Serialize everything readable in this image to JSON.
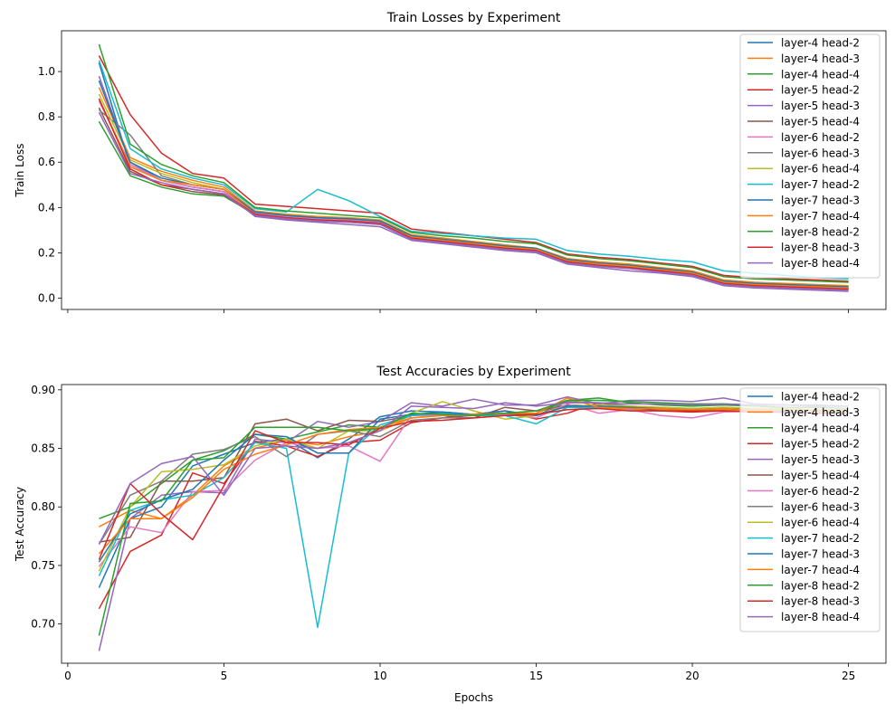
{
  "chart_data": [
    {
      "type": "line",
      "title": "Train Losses by Experiment",
      "xlabel": "",
      "ylabel": "Train Loss",
      "xlim": [
        -0.2,
        26.2
      ],
      "ylim": [
        -0.05,
        1.18
      ],
      "xticks": [
        0,
        5,
        10,
        15,
        20,
        25
      ],
      "show_xticklabels": false,
      "yticks": [
        0.0,
        0.2,
        0.4,
        0.6,
        0.8,
        1.0
      ],
      "ytick_labels": [
        "0.0",
        "0.2",
        "0.4",
        "0.6",
        "0.8",
        "1.0"
      ],
      "legend_position": "upper right",
      "x": [
        1,
        2,
        3,
        4,
        5,
        6,
        7,
        8,
        9,
        10,
        11,
        12,
        13,
        14,
        15,
        16,
        17,
        18,
        19,
        20,
        21,
        22,
        23,
        24,
        25
      ],
      "series": [
        {
          "name": "layer-4 head-2",
          "color": "#1f77b4",
          "values": [
            1.04,
            0.58,
            0.52,
            0.49,
            0.47,
            0.37,
            0.355,
            0.35,
            0.34,
            0.33,
            0.27,
            0.255,
            0.24,
            0.225,
            0.21,
            0.165,
            0.15,
            0.14,
            0.125,
            0.11,
            0.07,
            0.06,
            0.055,
            0.05,
            0.045
          ]
        },
        {
          "name": "layer-4 head-3",
          "color": "#ff7f0e",
          "values": [
            0.93,
            0.62,
            0.56,
            0.52,
            0.49,
            0.385,
            0.37,
            0.36,
            0.355,
            0.345,
            0.28,
            0.265,
            0.25,
            0.235,
            0.22,
            0.175,
            0.16,
            0.15,
            0.135,
            0.12,
            0.08,
            0.07,
            0.065,
            0.06,
            0.055
          ]
        },
        {
          "name": "layer-4 head-4",
          "color": "#2ca02c",
          "values": [
            0.78,
            0.54,
            0.49,
            0.46,
            0.45,
            0.37,
            0.355,
            0.345,
            0.34,
            0.33,
            0.265,
            0.25,
            0.235,
            0.22,
            0.205,
            0.16,
            0.145,
            0.135,
            0.12,
            0.105,
            0.065,
            0.055,
            0.05,
            0.045,
            0.04
          ]
        },
        {
          "name": "layer-5 head-2",
          "color": "#d62728",
          "values": [
            1.07,
            0.81,
            0.64,
            0.55,
            0.53,
            0.415,
            0.405,
            0.395,
            0.385,
            0.375,
            0.305,
            0.29,
            0.275,
            0.26,
            0.245,
            0.195,
            0.18,
            0.17,
            0.155,
            0.14,
            0.1,
            0.09,
            0.085,
            0.08,
            0.075
          ]
        },
        {
          "name": "layer-5 head-3",
          "color": "#9467bd",
          "values": [
            0.98,
            0.6,
            0.52,
            0.49,
            0.47,
            0.36,
            0.345,
            0.335,
            0.325,
            0.315,
            0.255,
            0.24,
            0.225,
            0.21,
            0.2,
            0.15,
            0.135,
            0.12,
            0.11,
            0.095,
            0.055,
            0.045,
            0.04,
            0.035,
            0.03
          ]
        },
        {
          "name": "layer-5 head-4",
          "color": "#8c564b",
          "values": [
            0.84,
            0.56,
            0.5,
            0.47,
            0.455,
            0.365,
            0.35,
            0.34,
            0.335,
            0.325,
            0.265,
            0.25,
            0.235,
            0.22,
            0.21,
            0.16,
            0.145,
            0.135,
            0.12,
            0.105,
            0.065,
            0.055,
            0.05,
            0.045,
            0.04
          ]
        },
        {
          "name": "layer-6 head-2",
          "color": "#e377c2",
          "values": [
            0.87,
            0.59,
            0.52,
            0.49,
            0.47,
            0.375,
            0.36,
            0.35,
            0.345,
            0.335,
            0.27,
            0.255,
            0.24,
            0.225,
            0.215,
            0.165,
            0.15,
            0.14,
            0.125,
            0.11,
            0.07,
            0.06,
            0.055,
            0.05,
            0.045
          ]
        },
        {
          "name": "layer-6 head-3",
          "color": "#7f7f7f",
          "values": [
            0.83,
            0.72,
            0.54,
            0.5,
            0.48,
            0.38,
            0.365,
            0.355,
            0.35,
            0.34,
            0.275,
            0.26,
            0.245,
            0.23,
            0.22,
            0.17,
            0.155,
            0.145,
            0.13,
            0.115,
            0.075,
            0.065,
            0.06,
            0.055,
            0.05
          ]
        },
        {
          "name": "layer-6 head-4",
          "color": "#bcbd22",
          "values": [
            0.9,
            0.61,
            0.55,
            0.51,
            0.48,
            0.38,
            0.365,
            0.355,
            0.35,
            0.34,
            0.275,
            0.26,
            0.245,
            0.23,
            0.22,
            0.17,
            0.155,
            0.145,
            0.13,
            0.115,
            0.075,
            0.065,
            0.06,
            0.055,
            0.05
          ]
        },
        {
          "name": "layer-7 head-2",
          "color": "#17becf",
          "values": [
            1.05,
            0.66,
            0.57,
            0.53,
            0.5,
            0.395,
            0.38,
            0.48,
            0.43,
            0.36,
            0.295,
            0.285,
            0.275,
            0.265,
            0.26,
            0.21,
            0.195,
            0.185,
            0.17,
            0.16,
            0.12,
            0.11,
            0.1,
            0.09,
            0.085
          ]
        },
        {
          "name": "layer-7 head-3",
          "color": "#1f77b4",
          "values": [
            0.96,
            0.6,
            0.53,
            0.5,
            0.48,
            0.38,
            0.365,
            0.355,
            0.35,
            0.34,
            0.275,
            0.26,
            0.245,
            0.23,
            0.22,
            0.17,
            0.155,
            0.145,
            0.13,
            0.115,
            0.075,
            0.065,
            0.06,
            0.055,
            0.05
          ]
        },
        {
          "name": "layer-7 head-4",
          "color": "#ff7f0e",
          "values": [
            0.88,
            0.58,
            0.52,
            0.5,
            0.48,
            0.37,
            0.355,
            0.345,
            0.34,
            0.33,
            0.27,
            0.255,
            0.24,
            0.225,
            0.215,
            0.165,
            0.15,
            0.14,
            0.125,
            0.11,
            0.07,
            0.06,
            0.055,
            0.05,
            0.045
          ]
        },
        {
          "name": "layer-8 head-2",
          "color": "#2ca02c",
          "values": [
            1.12,
            0.68,
            0.59,
            0.54,
            0.51,
            0.4,
            0.385,
            0.375,
            0.365,
            0.355,
            0.29,
            0.275,
            0.265,
            0.25,
            0.24,
            0.19,
            0.175,
            0.165,
            0.15,
            0.135,
            0.095,
            0.085,
            0.08,
            0.075,
            0.07
          ]
        },
        {
          "name": "layer-8 head-3",
          "color": "#d62728",
          "values": [
            0.88,
            0.57,
            0.5,
            0.48,
            0.46,
            0.37,
            0.355,
            0.345,
            0.34,
            0.33,
            0.265,
            0.25,
            0.235,
            0.22,
            0.21,
            0.16,
            0.145,
            0.135,
            0.12,
            0.105,
            0.065,
            0.055,
            0.05,
            0.045,
            0.04
          ]
        },
        {
          "name": "layer-8 head-4",
          "color": "#9467bd",
          "values": [
            0.82,
            0.55,
            0.51,
            0.48,
            0.46,
            0.365,
            0.35,
            0.34,
            0.335,
            0.325,
            0.26,
            0.245,
            0.23,
            0.215,
            0.205,
            0.155,
            0.14,
            0.13,
            0.115,
            0.1,
            0.06,
            0.05,
            0.045,
            0.04,
            0.035
          ]
        }
      ]
    },
    {
      "type": "line",
      "title": "Test Accuracies by Experiment",
      "xlabel": "Epochs",
      "ylabel": "Test Accuracy",
      "xlim": [
        -0.2,
        26.2
      ],
      "ylim": [
        0.6665,
        0.9045
      ],
      "xticks": [
        0,
        5,
        10,
        15,
        20,
        25
      ],
      "show_xticklabels": true,
      "yticks": [
        0.7,
        0.75,
        0.8,
        0.85,
        0.9
      ],
      "ytick_labels": [
        "0.70",
        "0.75",
        "0.80",
        "0.85",
        "0.90"
      ],
      "legend_position": "upper right",
      "x": [
        1,
        2,
        3,
        4,
        5,
        6,
        7,
        8,
        9,
        10,
        11,
        12,
        13,
        14,
        15,
        16,
        17,
        18,
        19,
        20,
        21,
        22,
        23,
        24,
        25
      ],
      "series": [
        {
          "name": "layer-4 head-2",
          "color": "#1f77b4",
          "values": [
            0.731,
            0.79,
            0.8,
            0.835,
            0.845,
            0.855,
            0.858,
            0.842,
            0.858,
            0.877,
            0.882,
            0.881,
            0.879,
            0.882,
            0.878,
            0.886,
            0.885,
            0.884,
            0.884,
            0.882,
            0.884,
            0.883,
            0.882,
            0.882,
            0.881
          ]
        },
        {
          "name": "layer-4 head-3",
          "color": "#ff7f0e",
          "values": [
            0.783,
            0.797,
            0.79,
            0.81,
            0.835,
            0.85,
            0.857,
            0.853,
            0.86,
            0.865,
            0.876,
            0.878,
            0.879,
            0.88,
            0.882,
            0.885,
            0.884,
            0.883,
            0.883,
            0.882,
            0.883,
            0.882,
            0.881,
            0.881,
            0.88
          ]
        },
        {
          "name": "layer-4 head-4",
          "color": "#2ca02c",
          "values": [
            0.79,
            0.8,
            0.82,
            0.84,
            0.848,
            0.862,
            0.858,
            0.864,
            0.87,
            0.868,
            0.878,
            0.88,
            0.878,
            0.879,
            0.88,
            0.891,
            0.893,
            0.889,
            0.887,
            0.886,
            0.887,
            0.886,
            0.885,
            0.885,
            0.884
          ]
        },
        {
          "name": "layer-5 head-2",
          "color": "#d62728",
          "values": [
            0.713,
            0.762,
            0.776,
            0.829,
            0.82,
            0.856,
            0.852,
            0.843,
            0.855,
            0.857,
            0.872,
            0.876,
            0.879,
            0.882,
            0.875,
            0.88,
            0.889,
            0.885,
            0.882,
            0.882,
            0.882,
            0.881,
            0.881,
            0.88,
            0.88
          ]
        },
        {
          "name": "layer-5 head-3",
          "color": "#9467bd",
          "values": [
            0.677,
            0.79,
            0.81,
            0.813,
            0.812,
            0.858,
            0.855,
            0.873,
            0.868,
            0.873,
            0.889,
            0.886,
            0.892,
            0.887,
            0.887,
            0.894,
            0.888,
            0.891,
            0.891,
            0.89,
            0.893,
            0.888,
            0.887,
            0.887,
            0.886
          ]
        },
        {
          "name": "layer-5 head-4",
          "color": "#8c564b",
          "values": [
            0.77,
            0.774,
            0.822,
            0.822,
            0.825,
            0.871,
            0.875,
            0.865,
            0.874,
            0.873,
            0.878,
            0.878,
            0.876,
            0.885,
            0.882,
            0.887,
            0.886,
            0.885,
            0.884,
            0.884,
            0.884,
            0.883,
            0.883,
            0.882,
            0.882
          ]
        },
        {
          "name": "layer-6 head-2",
          "color": "#e377c2",
          "values": [
            0.749,
            0.783,
            0.778,
            0.813,
            0.814,
            0.84,
            0.855,
            0.85,
            0.852,
            0.839,
            0.878,
            0.878,
            0.878,
            0.879,
            0.876,
            0.888,
            0.88,
            0.883,
            0.878,
            0.876,
            0.881,
            0.882,
            0.882,
            0.881,
            0.88
          ]
        },
        {
          "name": "layer-6 head-3",
          "color": "#7f7f7f",
          "values": [
            0.768,
            0.81,
            0.822,
            0.845,
            0.849,
            0.86,
            0.843,
            0.862,
            0.865,
            0.86,
            0.874,
            0.876,
            0.876,
            0.878,
            0.878,
            0.89,
            0.889,
            0.886,
            0.885,
            0.884,
            0.885,
            0.884,
            0.884,
            0.883,
            0.883
          ]
        },
        {
          "name": "layer-6 head-4",
          "color": "#bcbd22",
          "values": [
            0.745,
            0.8,
            0.83,
            0.832,
            0.836,
            0.852,
            0.858,
            0.85,
            0.865,
            0.865,
            0.88,
            0.89,
            0.882,
            0.875,
            0.878,
            0.886,
            0.887,
            0.886,
            0.885,
            0.884,
            0.885,
            0.884,
            0.884,
            0.883,
            0.883
          ]
        },
        {
          "name": "layer-7 head-2",
          "color": "#17becf",
          "values": [
            0.741,
            0.797,
            0.806,
            0.81,
            0.825,
            0.855,
            0.85,
            0.697,
            0.846,
            0.87,
            0.878,
            0.88,
            0.878,
            0.878,
            0.871,
            0.885,
            0.885,
            0.884,
            0.884,
            0.883,
            0.884,
            0.883,
            0.882,
            0.882,
            0.881
          ]
        },
        {
          "name": "layer-7 head-3",
          "color": "#1f77b4",
          "values": [
            0.753,
            0.794,
            0.806,
            0.815,
            0.84,
            0.862,
            0.86,
            0.846,
            0.846,
            0.875,
            0.879,
            0.881,
            0.879,
            0.882,
            0.878,
            0.886,
            0.886,
            0.885,
            0.884,
            0.883,
            0.884,
            0.883,
            0.883,
            0.882,
            0.882
          ]
        },
        {
          "name": "layer-7 head-4",
          "color": "#ff7f0e",
          "values": [
            0.76,
            0.79,
            0.79,
            0.808,
            0.832,
            0.845,
            0.853,
            0.862,
            0.866,
            0.868,
            0.876,
            0.878,
            0.879,
            0.88,
            0.88,
            0.893,
            0.885,
            0.884,
            0.884,
            0.883,
            0.884,
            0.883,
            0.883,
            0.882,
            0.882
          ]
        },
        {
          "name": "layer-8 head-2",
          "color": "#2ca02c",
          "values": [
            0.69,
            0.803,
            0.805,
            0.84,
            0.842,
            0.868,
            0.868,
            0.868,
            0.865,
            0.867,
            0.88,
            0.879,
            0.878,
            0.88,
            0.882,
            0.891,
            0.891,
            0.89,
            0.889,
            0.888,
            0.888,
            0.887,
            0.887,
            0.886,
            0.886
          ]
        },
        {
          "name": "layer-8 head-3",
          "color": "#d62728",
          "values": [
            0.755,
            0.82,
            0.794,
            0.772,
            0.818,
            0.865,
            0.855,
            0.855,
            0.853,
            0.867,
            0.873,
            0.874,
            0.876,
            0.878,
            0.879,
            0.883,
            0.884,
            0.882,
            0.882,
            0.881,
            0.882,
            0.881,
            0.881,
            0.88,
            0.88
          ]
        },
        {
          "name": "layer-8 head-4",
          "color": "#9467bd",
          "values": [
            0.768,
            0.82,
            0.837,
            0.843,
            0.81,
            0.85,
            0.852,
            0.85,
            0.855,
            0.865,
            0.886,
            0.885,
            0.884,
            0.889,
            0.886,
            0.889,
            0.889,
            0.888,
            0.888,
            0.887,
            0.888,
            0.887,
            0.887,
            0.886,
            0.886
          ]
        }
      ]
    }
  ]
}
